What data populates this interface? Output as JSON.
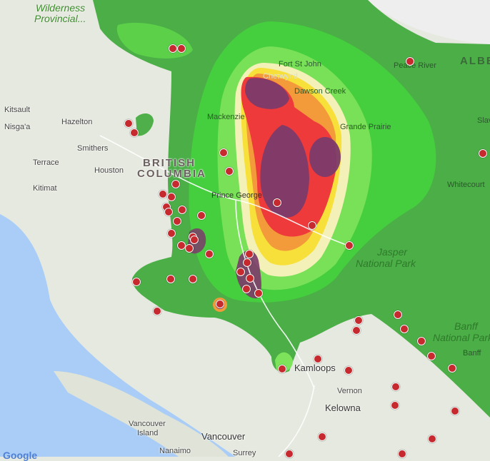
{
  "map": {
    "attribution_logo": "Google",
    "colors": {
      "ocean": "#a9cdf6",
      "land": "#e6e9df",
      "smoke_dark_green": "#3ea83a",
      "smoke_green": "#44d43c",
      "smoke_light_green": "#7de35a",
      "smoke_pale_yellow": "#f4f1b8",
      "smoke_yellow": "#f7e03a",
      "smoke_orange": "#f39a3b",
      "smoke_red": "#ee3a3a",
      "smoke_purple": "#7b3a6a",
      "fire_marker": "#c62a2f"
    },
    "labels": {
      "wilderness": "Wilderness",
      "provincial": "Provincial...",
      "kitsault": "Kitsault",
      "nisgaa": "Nisga'a",
      "hazelton": "Hazelton",
      "smithers": "Smithers",
      "terrace": "Terrace",
      "houston": "Houston",
      "kitimat": "Kitimat",
      "british": "BRITISH",
      "columbia": "COLUMBIA",
      "fort_st_john": "Fort St John",
      "chetwynd": "Chetwynd",
      "dawson_creek": "Dawson Creek",
      "mackenzie": "Mackenzie",
      "grande_prairie": "Grande Prairie",
      "prince_george": "Prince George",
      "peace_river": "Peace River",
      "alberta": "ALBER",
      "slave": "Slav",
      "whitecourt": "Whitecourt",
      "jasper1": "Jasper",
      "jasper2": "National Park",
      "banff1": "Banff",
      "banff2": "National Park",
      "banff_town": "Banff",
      "kamloops": "Kamloops",
      "vernon": "Vernon",
      "kelowna": "Kelowna",
      "vancouver_island1": "Vancouver",
      "vancouver_island2": "Island",
      "vancouver": "Vancouver",
      "nanaimo": "Nanaimo",
      "surrey": "Surrey"
    },
    "fire_marker_icon": "fire-location-marker"
  }
}
